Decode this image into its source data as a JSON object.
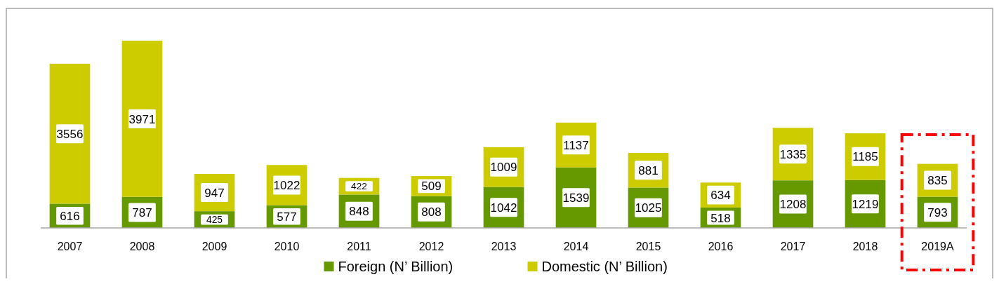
{
  "chart_data": {
    "type": "bar",
    "stacked": true,
    "data_labels": true,
    "legend": "bottom",
    "categories": [
      "2007",
      "2008",
      "2009",
      "2010",
      "2011",
      "2012",
      "2013",
      "2014",
      "2015",
      "2016",
      "2017",
      "2018",
      "2019A"
    ],
    "series": [
      {
        "name": "Foreign (N’ Billion)",
        "color": "#669900",
        "values": [
          616,
          787,
          425,
          577,
          848,
          808,
          1042,
          1539,
          1025,
          518,
          1208,
          1219,
          793
        ]
      },
      {
        "name": "Domestic (N’ Billion)",
        "color": "#cccc00",
        "values": [
          3556,
          3971,
          947,
          1022,
          422,
          509,
          1009,
          1137,
          881,
          634,
          1335,
          1185,
          835
        ]
      }
    ]
  }
}
